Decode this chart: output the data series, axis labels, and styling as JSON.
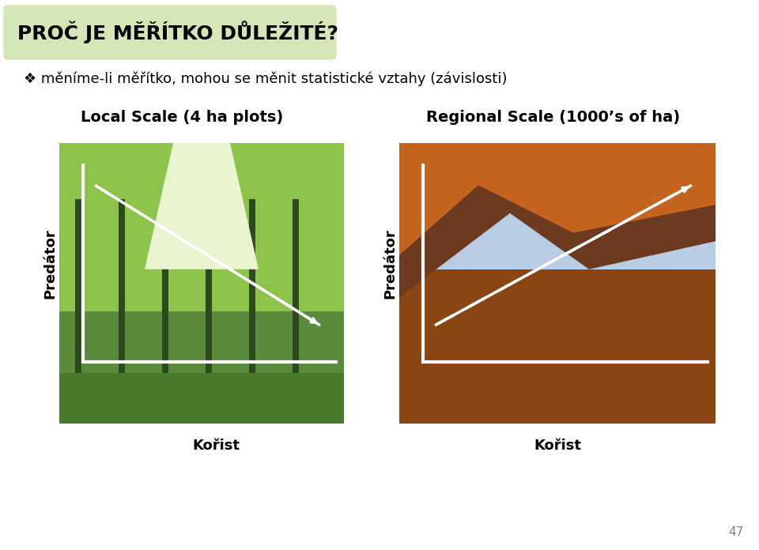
{
  "title": "PROČ JE MĚŘÍTKO DŮLEŽITÉ?",
  "title_bg": "#d4e6b5",
  "subtitle": "❖ měníme-li měřítko, mohou se měnit statistické vztahy (závislosti)",
  "label_local": "Local Scale (4 ha plots)",
  "label_regional": "Regional Scale (1000’s of ha)",
  "ylabel": "Predátor",
  "xlabel": "Kořist",
  "page_number": "47",
  "bg_color": "#ffffff",
  "arrow1_direction": "down_right",
  "arrow2_direction": "up_right",
  "axis_color": "#ffffff",
  "dashed_color": "#ffffff"
}
